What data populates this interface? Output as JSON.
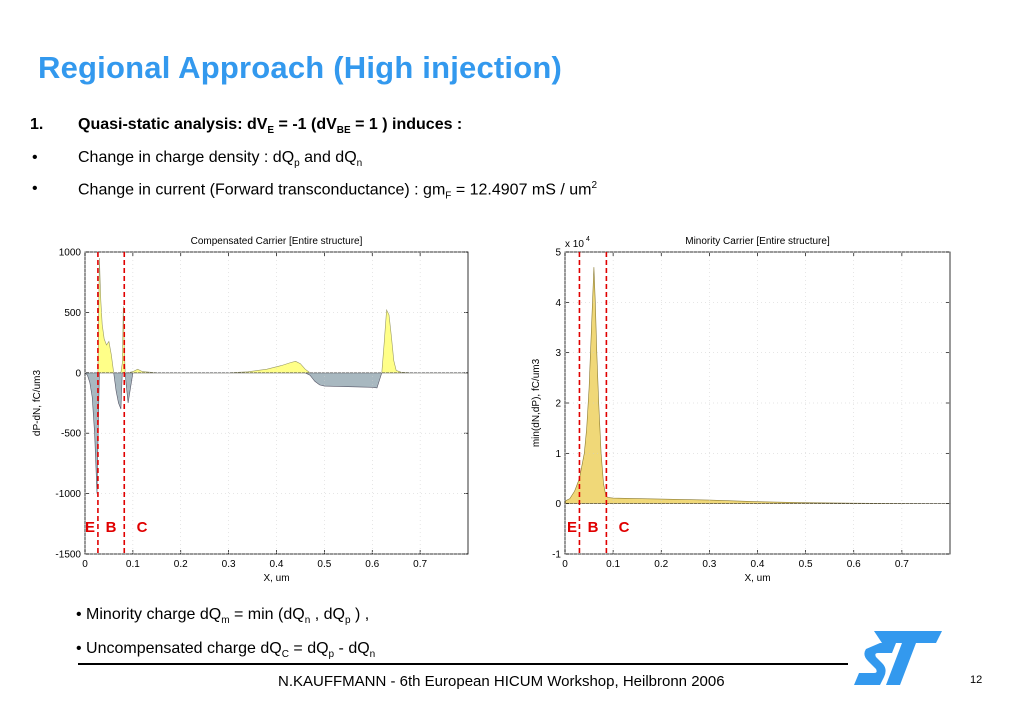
{
  "slide": {
    "title": "Regional Approach (High injection)",
    "line1": {
      "num": "1.",
      "text_a": "Quasi-static analysis: dV",
      "sub_a": "E",
      "text_b": " = -1 (dV",
      "sub_b": "BE",
      "text_c": " = 1 ) induces  :"
    },
    "line2": {
      "bullet": "•",
      "text_a": "Change in charge density : dQ",
      "sub_a": "p",
      "text_b": "  and dQ",
      "sub_b": "n"
    },
    "line3": {
      "bullet": "•",
      "text_a": "Change in current (Forward transconductance) : gm",
      "sub_a": "F",
      "text_b": " = 12.4907 mS / um",
      "sup": "2"
    },
    "bullets": [
      {
        "a": "• Minority charge dQ",
        "s1": "m",
        "b": " = min (dQ",
        "s2": "n",
        "c": " , dQ",
        "s3": "p",
        "d": " ) ,",
        "s4": "",
        "e": ""
      },
      {
        "a": "• Uncompensated charge dQ",
        "s1": "C",
        "b": "  = dQ",
        "s2": "p",
        "c": " - dQ",
        "s3": "n",
        "d": "",
        "s4": "",
        "e": ""
      }
    ],
    "footer": "N.KAUFFMANN - 6th European HICUM Workshop, Heilbronn 2006",
    "page": "12"
  },
  "colors": {
    "title": "#3399ee",
    "positive_fill": "#ffff88",
    "negative_fill": "#a8b8c0",
    "minority_fill": "#f0d878",
    "marker": "#e00000",
    "logo": "#3399ee"
  },
  "chart_data": [
    {
      "type": "area",
      "title": "Compensated Carrier [Entire structure]",
      "xlabel": "X, um",
      "ylabel": "dP-dN, fC/um3",
      "xlim": [
        0,
        0.8
      ],
      "ylim": [
        -1500,
        1000
      ],
      "xticks": [
        "0",
        "0.1",
        "0.2",
        "0.3",
        "0.4",
        "0.5",
        "0.6",
        "0.7"
      ],
      "yticks": [
        "1000",
        "500",
        "0",
        "-500",
        "-1000",
        "-1500"
      ],
      "ytick_values": [
        1000,
        500,
        0,
        -500,
        -1000,
        -1500
      ],
      "region_labels": [
        "E",
        "B",
        "C"
      ],
      "markers_x": [
        0.027,
        0.082
      ],
      "series": [
        {
          "x": [
            0,
            0.005,
            0.01,
            0.015,
            0.02,
            0.025,
            0.027,
            0.03,
            0.033,
            0.036,
            0.04,
            0.045,
            0.05,
            0.055,
            0.06,
            0.065,
            0.07,
            0.075,
            0.078,
            0.08,
            0.082,
            0.084,
            0.086,
            0.09,
            0.1,
            0.11,
            0.12,
            0.15,
            0.2,
            0.3,
            0.34,
            0.38,
            0.41,
            0.43,
            0.44,
            0.45,
            0.46,
            0.47,
            0.48,
            0.49,
            0.5,
            0.52,
            0.55,
            0.58,
            0.6,
            0.61,
            0.62,
            0.625,
            0.63,
            0.635,
            0.64,
            0.645,
            0.65,
            0.66,
            0.68,
            0.7,
            0.8
          ],
          "y": [
            0,
            -20,
            -80,
            -200,
            -500,
            -1000,
            -600,
            950,
            600,
            400,
            280,
            230,
            260,
            150,
            0,
            -150,
            -250,
            -300,
            80,
            550,
            200,
            0,
            -100,
            -250,
            10,
            30,
            10,
            0,
            0,
            0,
            8,
            30,
            60,
            85,
            95,
            75,
            30,
            -20,
            -70,
            -100,
            -110,
            -112,
            -115,
            -118,
            -120,
            -125,
            0,
            250,
            520,
            480,
            300,
            100,
            20,
            5,
            0,
            0,
            0
          ]
        }
      ]
    },
    {
      "type": "area",
      "title": "Minority Carrier [Entire structure]",
      "xlabel": "X, um",
      "ylabel": "min(dN,dP), fC/um3",
      "multiplier": "x 10",
      "multiplier_exp": "4",
      "xlim": [
        0,
        0.8
      ],
      "ylim": [
        -1,
        5
      ],
      "xticks": [
        "0",
        "0.1",
        "0.2",
        "0.3",
        "0.4",
        "0.5",
        "0.6",
        "0.7"
      ],
      "yticks": [
        "5",
        "4",
        "3",
        "2",
        "1",
        "0",
        "-1"
      ],
      "ytick_values": [
        5,
        4,
        3,
        2,
        1,
        0,
        -1
      ],
      "region_labels": [
        "E",
        "B",
        "C"
      ],
      "markers_x": [
        0.03,
        0.086
      ],
      "series": [
        {
          "x": [
            0,
            0.01,
            0.02,
            0.03,
            0.04,
            0.045,
            0.05,
            0.055,
            0.06,
            0.063,
            0.066,
            0.07,
            0.075,
            0.08,
            0.085,
            0.09,
            0.1,
            0.2,
            0.3,
            0.4,
            0.5,
            0.6,
            0.8
          ],
          "y": [
            0.05,
            0.1,
            0.25,
            0.5,
            1.0,
            1.5,
            2.3,
            3.5,
            4.7,
            4.0,
            3.0,
            2.0,
            1.0,
            0.4,
            0.15,
            0.12,
            0.11,
            0.09,
            0.07,
            0.04,
            0.02,
            0.01,
            0
          ]
        }
      ]
    }
  ]
}
